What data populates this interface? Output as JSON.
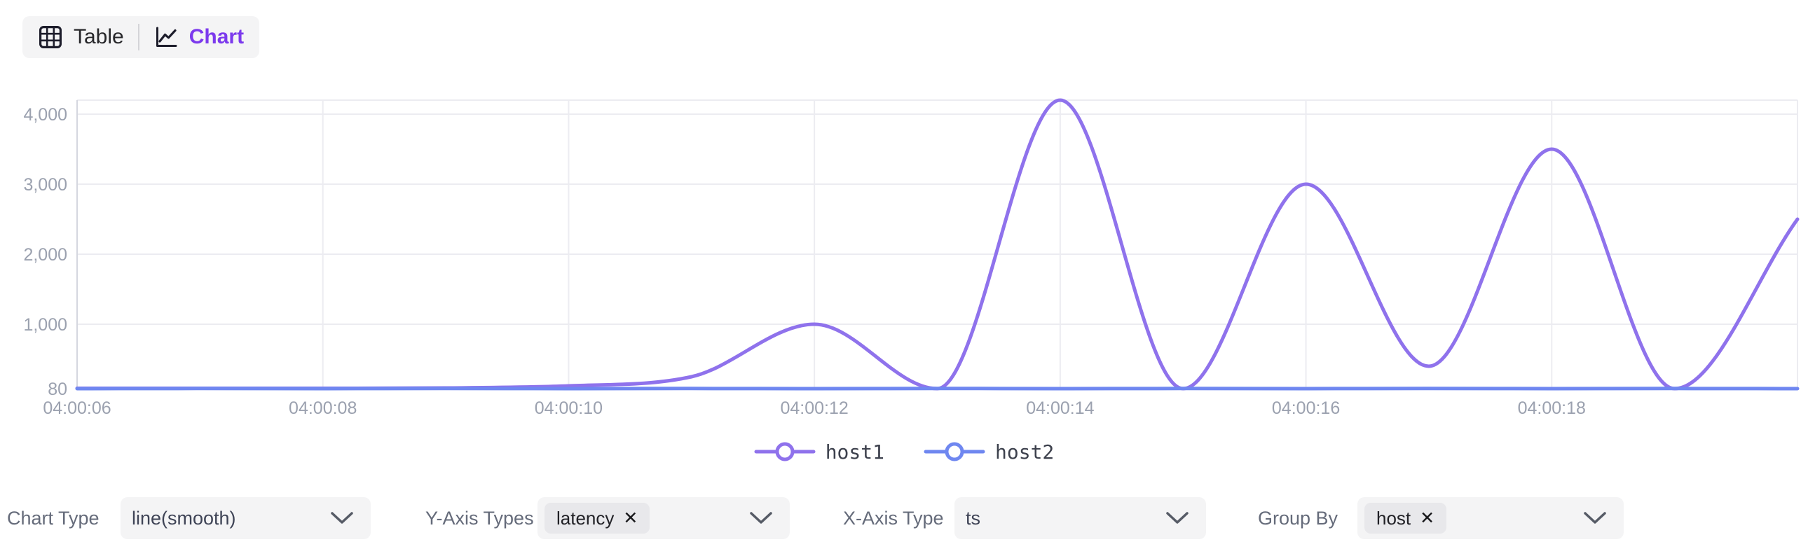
{
  "view_toggle": {
    "table_label": "Table",
    "chart_label": "Chart",
    "active": "Chart",
    "active_color": "#7c3aed"
  },
  "chart_data": {
    "type": "line",
    "smooth": true,
    "x": [
      "04:00:06",
      "04:00:07",
      "04:00:08",
      "04:00:09",
      "04:00:10",
      "04:00:11",
      "04:00:12",
      "04:00:13",
      "04:00:14",
      "04:00:15",
      "04:00:16",
      "04:00:17",
      "04:00:18",
      "04:00:19",
      "04:00:20"
    ],
    "series": [
      {
        "name": "host1",
        "color": "#8f72ec",
        "values": [
          85,
          85,
          85,
          90,
          120,
          250,
          1000,
          80,
          4200,
          80,
          3000,
          400,
          3500,
          80,
          2500
        ]
      },
      {
        "name": "host2",
        "color": "#6f87f0",
        "values": [
          80,
          82,
          80,
          83,
          80,
          82,
          80,
          83,
          80,
          82,
          80,
          83,
          80,
          82,
          80
        ]
      }
    ],
    "x_tick_labels": [
      "04:00:06",
      "04:00:08",
      "04:00:10",
      "04:00:12",
      "04:00:14",
      "04:00:16",
      "04:00:18"
    ],
    "y_ticks": [
      {
        "value": 80,
        "label": "80"
      },
      {
        "value": 1000,
        "label": "1,000"
      },
      {
        "value": 2000,
        "label": "2,000"
      },
      {
        "value": 3000,
        "label": "3,000"
      },
      {
        "value": 4000,
        "label": "4,000"
      }
    ],
    "ylim": [
      80,
      4200
    ],
    "ylabel": "latency",
    "xlabel": "ts",
    "grid": true,
    "legend_position": "bottom",
    "legend": [
      "host1",
      "host2"
    ]
  },
  "controls": {
    "chart_type": {
      "label": "Chart Type",
      "value": "line(smooth)"
    },
    "y_axis_types": {
      "label": "Y-Axis Types",
      "tags": [
        "latency"
      ]
    },
    "x_axis_type": {
      "label": "X-Axis Type",
      "value": "ts"
    },
    "group_by": {
      "label": "Group By",
      "tags": [
        "host"
      ]
    }
  },
  "icons": {
    "remove": "✕"
  },
  "colors": {
    "accent_purple": "#7c3aed",
    "series_host1": "#8f72ec",
    "series_host2": "#6f87f0",
    "grid_line": "#ececf1",
    "axis_line": "#d5d7df",
    "tick_text": "#9ba1af",
    "control_bg": "#f4f4f5",
    "tag_bg": "#e8e8eb"
  }
}
